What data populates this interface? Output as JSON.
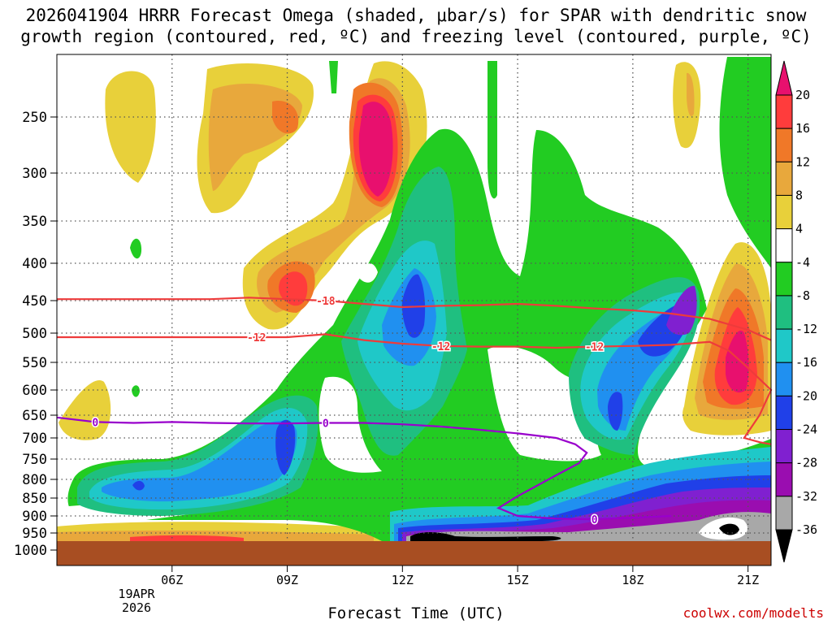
{
  "title_line1": "2026041904 HRRR Forecast Omega (shaded, μbar/s) for SPAR with dendritic snow",
  "title_line2": "growth region (contoured, red, ºC) and freezing level (contoured, purple, ºC)",
  "xaxis_title": "Forecast Time (UTC)",
  "credit": "coolwx.com/modelts",
  "date_label_line1": "19APR",
  "date_label_line2": "2026",
  "chart_data": {
    "type": "time-height contour",
    "x_range_hours": [
      3,
      21.6
    ],
    "x_ticks": [
      {
        "hour": 6,
        "label": "06Z"
      },
      {
        "hour": 9,
        "label": "09Z"
      },
      {
        "hour": 12,
        "label": "12Z"
      },
      {
        "hour": 15,
        "label": "15Z"
      },
      {
        "hour": 18,
        "label": "18Z"
      },
      {
        "hour": 21,
        "label": "21Z"
      }
    ],
    "y_ticks_hpa": [
      250,
      300,
      350,
      400,
      450,
      500,
      550,
      600,
      650,
      700,
      750,
      800,
      850,
      900,
      950,
      1000
    ],
    "colorbar": {
      "labels": [
        "20",
        "16",
        "12",
        "8",
        "4",
        "-4",
        "-8",
        "-12",
        "-16",
        "-20",
        "-24",
        "-28",
        "-32",
        "-36"
      ],
      "colors": [
        "#ff3c3c",
        "#f07828",
        "#e8a83c",
        "#e8d03a",
        "#ffffff",
        "#22cc22",
        "#1fbf80",
        "#1fc8c8",
        "#2090f0",
        "#2040e8",
        "#8020d0",
        "#9a0db0",
        "#a8a8a8",
        "#000000"
      ],
      "top_arrow_color": "#e8106e",
      "bottom_arrow_color": "#000000"
    },
    "contours": [
      {
        "name": "dgz-top",
        "label": "-18",
        "color": "#ee3b3b",
        "points": [
          [
            3.0,
            448
          ],
          [
            5.0,
            448
          ],
          [
            7.0,
            448
          ],
          [
            8.0,
            446
          ],
          [
            9.0,
            448
          ],
          [
            10.0,
            450
          ],
          [
            11.0,
            455
          ],
          [
            12.0,
            460
          ],
          [
            13.0,
            458
          ],
          [
            14.0,
            457
          ],
          [
            15.0,
            455
          ],
          [
            16.0,
            458
          ],
          [
            17.0,
            462
          ],
          [
            18.0,
            465
          ],
          [
            19.0,
            470
          ],
          [
            20.0,
            478
          ],
          [
            21.0,
            495
          ],
          [
            21.6,
            512
          ]
        ],
        "label_at": [
          10.0,
          450
        ]
      },
      {
        "name": "dgz-bottom",
        "label": "-12",
        "color": "#ee3b3b",
        "points": [
          [
            3.0,
            507
          ],
          [
            6.0,
            507
          ],
          [
            8.0,
            507
          ],
          [
            9.0,
            507
          ],
          [
            10.0,
            502
          ],
          [
            11.0,
            512
          ],
          [
            12.0,
            518
          ],
          [
            13.0,
            522
          ],
          [
            14.0,
            523
          ],
          [
            15.0,
            523
          ],
          [
            16.0,
            525
          ],
          [
            17.0,
            523
          ],
          [
            18.0,
            522
          ],
          [
            19.0,
            520
          ],
          [
            20.0,
            515
          ],
          [
            20.5,
            530
          ],
          [
            21.0,
            560
          ],
          [
            21.6,
            600
          ],
          [
            21.3,
            650
          ],
          [
            20.9,
            700
          ],
          [
            21.3,
            710
          ],
          [
            21.6,
            715
          ]
        ],
        "label_at_list": [
          [
            8.2,
            507
          ],
          [
            13.0,
            522
          ],
          [
            17.0,
            523
          ]
        ]
      },
      {
        "name": "freezing-level",
        "label": "0",
        "color": "#9900cc",
        "points": [
          [
            3.0,
            655
          ],
          [
            4.0,
            665
          ],
          [
            5.0,
            667
          ],
          [
            6.0,
            665
          ],
          [
            7.0,
            667
          ],
          [
            8.0,
            668
          ],
          [
            9.0,
            668
          ],
          [
            10.0,
            667
          ],
          [
            11.0,
            667
          ],
          [
            12.0,
            670
          ],
          [
            13.0,
            675
          ],
          [
            14.0,
            682
          ],
          [
            15.0,
            690
          ],
          [
            16.0,
            700
          ],
          [
            16.5,
            715
          ],
          [
            16.8,
            735
          ],
          [
            16.6,
            760
          ],
          [
            16.0,
            790
          ],
          [
            15.0,
            845
          ],
          [
            14.5,
            878
          ],
          [
            15.0,
            900
          ],
          [
            16.0,
            908
          ],
          [
            17.0,
            910
          ],
          [
            18.0,
            905
          ],
          [
            19.0,
            900
          ]
        ],
        "label_at_list": [
          [
            4.0,
            665
          ],
          [
            10.0,
            667
          ],
          [
            17.0,
            910
          ]
        ]
      }
    ]
  }
}
